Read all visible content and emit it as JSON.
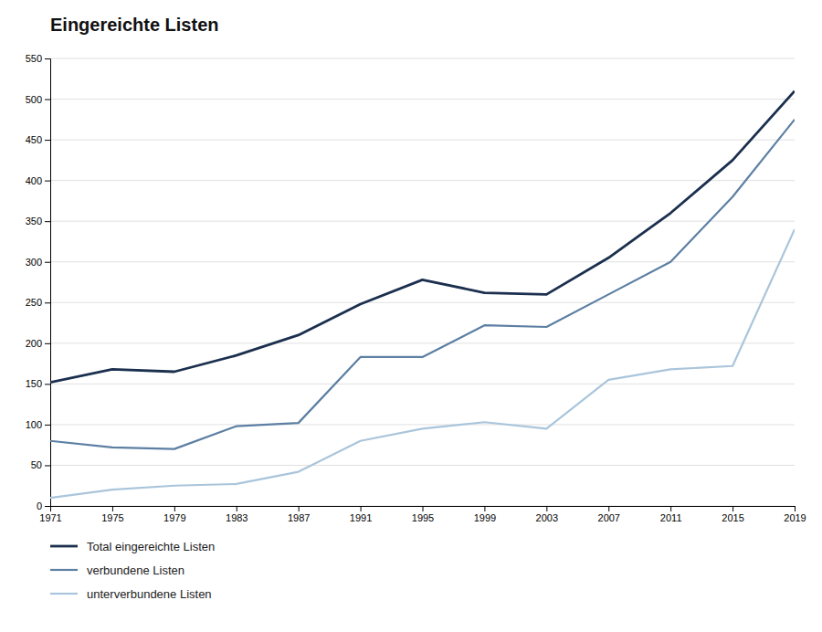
{
  "chart_data": {
    "type": "line",
    "title": "Eingereichte Listen",
    "x": [
      1971,
      1975,
      1979,
      1983,
      1987,
      1991,
      1995,
      1999,
      2003,
      2007,
      2011,
      2015,
      2019
    ],
    "series": [
      {
        "name": "Total eingereichte Listen",
        "color": "#1b2f4e",
        "values": [
          152,
          168,
          165,
          185,
          210,
          248,
          278,
          262,
          260,
          305,
          360,
          425,
          510
        ]
      },
      {
        "name": "verbundene Listen",
        "color": "#5c7fa3",
        "values": [
          80,
          72,
          70,
          98,
          102,
          183,
          183,
          222,
          220,
          260,
          300,
          380,
          475
        ]
      },
      {
        "name": "unterverbundene Listen",
        "color": "#aac5db",
        "values": [
          10,
          20,
          25,
          27,
          42,
          80,
          95,
          103,
          95,
          155,
          168,
          172,
          340
        ]
      }
    ],
    "xlim": [
      1971,
      2019
    ],
    "xticks": [
      1971,
      1975,
      1979,
      1983,
      1987,
      1991,
      1995,
      1999,
      2003,
      2007,
      2011,
      2015,
      2019
    ],
    "ylim": [
      0,
      550
    ],
    "yticks": [
      0,
      50,
      100,
      150,
      200,
      250,
      300,
      350,
      400,
      450,
      500,
      550
    ],
    "grid": true,
    "legend": "bottom"
  }
}
